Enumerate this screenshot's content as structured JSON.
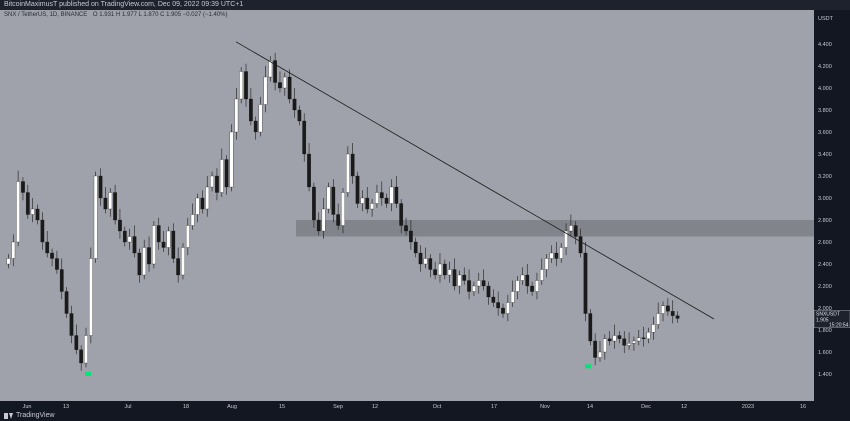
{
  "header": {
    "publish_line": "BitcoinMaximusT published on TradingView.com, Dec 09, 2022 09:39 UTC+1",
    "symbol_line": "SNX / TetherUS, 1D, BINANCE",
    "ohlc": "O 1.931  H 1.977  L 1.870  C 1.905  −0.027 (−1.40%)"
  },
  "price_axis": {
    "unit_label": "USDT",
    "last_price_label": "SNXUSDT",
    "last_price": "1.905",
    "countdown": "15:20:54"
  },
  "footer": {
    "brand": "TradingView"
  },
  "colors": {
    "background": "#9fa2aa",
    "up_candle": "#ffffff",
    "down_candle": "#1a1a1a",
    "resistance_zone": "#7c7f86",
    "trendline": "#1c1c1c",
    "marker": "#00e676"
  },
  "chart_data": {
    "type": "candlestick",
    "symbol": "SNX / TetherUS",
    "interval": "1D",
    "ylim": [
      1.2,
      4.6
    ],
    "yticks": [
      "4.400",
      "4.200",
      "4.000",
      "3.800",
      "3.600",
      "3.400",
      "3.200",
      "3.000",
      "2.800",
      "2.600",
      "2.400",
      "2.200",
      "2.000",
      "1.800",
      "1.600",
      "1.400"
    ],
    "xticks": [
      "Jun",
      "13",
      "Jul",
      "18",
      "Aug",
      "15",
      "Sep",
      "12",
      "Oct",
      "17",
      "Nov",
      "14",
      "Dec",
      "12",
      "2023",
      "16"
    ],
    "resistance_zone": [
      2.65,
      2.8
    ],
    "trendline": {
      "start": [
        "Jul 31",
        4.42
      ],
      "end": [
        "Dec 29",
        1.9
      ]
    },
    "markers": [
      {
        "date": "Jun 18",
        "price": 1.4
      },
      {
        "date": "Nov 14",
        "price": 1.47
      }
    ],
    "closes": [
      2.45,
      2.6,
      3.15,
      3.05,
      2.85,
      2.9,
      2.8,
      2.6,
      2.5,
      2.45,
      2.35,
      2.15,
      1.95,
      1.75,
      1.62,
      1.5,
      1.75,
      2.45,
      3.2,
      3.0,
      2.9,
      3.05,
      2.8,
      2.7,
      2.6,
      2.65,
      2.5,
      2.3,
      2.55,
      2.4,
      2.75,
      2.6,
      2.55,
      2.7,
      2.45,
      2.3,
      2.55,
      2.75,
      2.85,
      3.0,
      2.9,
      3.1,
      3.2,
      3.05,
      3.35,
      3.1,
      3.6,
      3.9,
      4.15,
      3.9,
      3.7,
      3.6,
      3.85,
      4.1,
      4.25,
      4.05,
      4.0,
      4.1,
      3.9,
      3.8,
      3.7,
      3.4,
      3.1,
      2.8,
      2.7,
      2.9,
      3.1,
      2.85,
      2.75,
      3.05,
      3.4,
      3.2,
      2.95,
      3.0,
      2.9,
      2.95,
      3.05,
      3.0,
      2.95,
      3.1,
      2.95,
      2.75,
      2.7,
      2.6,
      2.5,
      2.4,
      2.45,
      2.35,
      2.3,
      2.4,
      2.3,
      2.35,
      2.2,
      2.3,
      2.25,
      2.15,
      2.2,
      2.25,
      2.2,
      2.1,
      2.05,
      2.0,
      1.95,
      2.05,
      2.15,
      2.25,
      2.3,
      2.2,
      2.15,
      2.25,
      2.35,
      2.45,
      2.5,
      2.45,
      2.55,
      2.7,
      2.75,
      2.65,
      2.5,
      1.95,
      1.7,
      1.55,
      1.6,
      1.72,
      1.7,
      1.75,
      1.72,
      1.66,
      1.68,
      1.7,
      1.73,
      1.72,
      1.78,
      1.85,
      1.95,
      2.02,
      1.97,
      1.93,
      1.905
    ]
  }
}
